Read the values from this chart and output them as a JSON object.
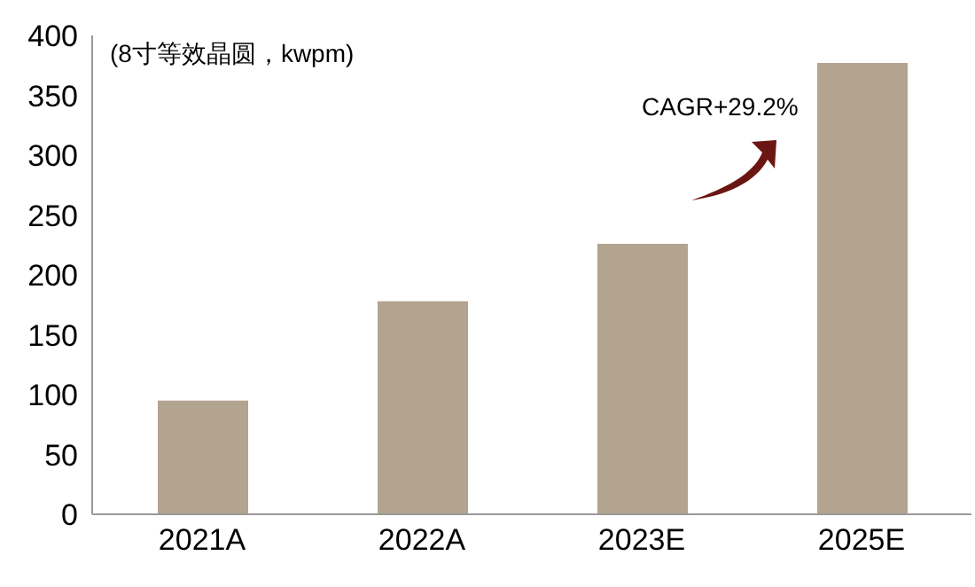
{
  "chart_data": {
    "type": "bar",
    "ylabel": "(8寸等效晶圆，kwpm)",
    "categories": [
      "2021A",
      "2022A",
      "2023E",
      "2025E"
    ],
    "values": [
      95,
      178,
      226,
      377
    ],
    "color": "#b3a48f",
    "ylim": [
      0,
      400
    ],
    "yticks": [
      0,
      50,
      100,
      150,
      200,
      250,
      300,
      350,
      400
    ],
    "annotations": [
      "CAGR+29.2%"
    ]
  }
}
